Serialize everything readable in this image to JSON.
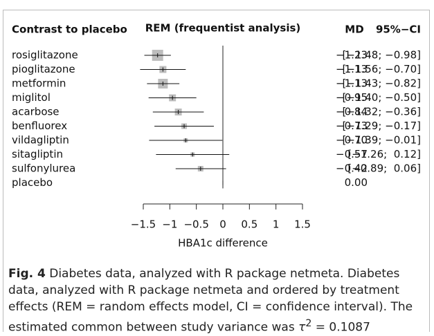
{
  "chart_data": {
    "type": "forest",
    "headers": {
      "contrast": "Contrast to placebo",
      "plot": "REM (frequentist analysis)",
      "estimate": "MD",
      "ci": "95%−CI"
    },
    "categories": [
      "rosiglitazone",
      "pioglitazone",
      "metformin",
      "miglitol",
      "acarbose",
      "benfluorex",
      "vildagliptin",
      "sitagliptin",
      "sulfonylurea",
      "placebo"
    ],
    "values": [
      -1.23,
      -1.13,
      -1.13,
      -0.95,
      -0.84,
      -0.73,
      -0.7,
      -0.57,
      -0.42,
      0.0
    ],
    "value_labels": [
      "−1.23",
      "−1.13",
      "−1.13",
      "−0.95",
      "−0.84",
      "−0.73",
      "−0.70",
      "−0.57",
      "−0.42",
      "0.00"
    ],
    "lower": [
      -1.48,
      -1.56,
      -1.43,
      -1.4,
      -1.32,
      -1.29,
      -1.39,
      -1.26,
      -0.89,
      0.0
    ],
    "upper": [
      -0.98,
      -0.7,
      -0.82,
      -0.5,
      -0.36,
      -0.17,
      -0.01,
      0.12,
      0.06,
      0.0
    ],
    "ci_labels": [
      "[−1.48; −0.98]",
      "[−1.56; −0.70]",
      "[−1.43; −0.82]",
      "[−1.40; −0.50]",
      "[−1.32; −0.36]",
      "[−1.29; −0.17]",
      "[−1.39; −0.01]",
      "[−1.26;  0.12]",
      "[−0.89;  0.06]",
      null
    ],
    "weights": [
      16,
      10,
      14,
      10,
      10,
      8,
      6,
      6,
      8,
      0
    ],
    "box_color": "#bdbdbd",
    "xlim": [
      -1.5,
      1.5
    ],
    "xticks": [
      {
        "value": -1.5,
        "label": "−1.5"
      },
      {
        "value": -1,
        "label": "−1"
      },
      {
        "value": -0.5,
        "label": "−0.5"
      },
      0,
      0.5,
      1,
      1.5
    ],
    "xlabel": "HBA1c difference"
  },
  "caption": {
    "label": "Fig. 4",
    "title": "Diabetes data, analyzed with R package netmeta.",
    "text": "Diabetes data, analyzed with R package netmeta and ordered by treatment effects (REM = random effects model, CI = confidence interval). The estimated common between study variance was",
    "symbol": "τ",
    "exponent": "2",
    "equals": "= 0.1087"
  }
}
